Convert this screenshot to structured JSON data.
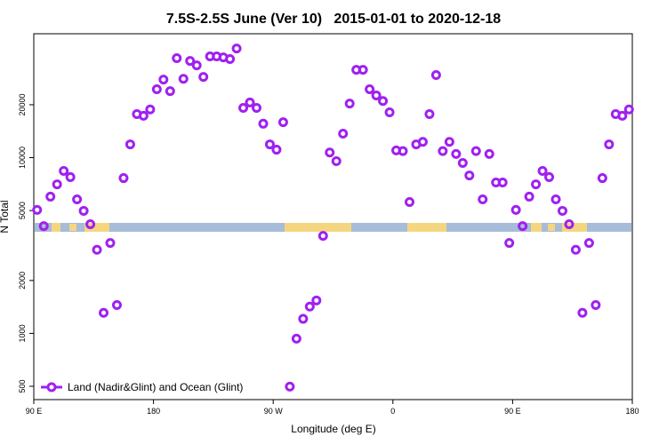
{
  "chart_data": {
    "type": "scatter",
    "title": "7.5S-2.5S June (Ver 10)   2015-01-01 to 2020-12-18",
    "x_label": "Longitude (deg E)",
    "y_label": "N Total",
    "ylog": true,
    "legend": "bottom-left",
    "xlim": [
      90,
      540
    ],
    "xticks": [
      {
        "value": 90,
        "label": "90 E"
      },
      180,
      {
        "value": 270,
        "label": "90 W"
      },
      {
        "value": 360,
        "label": "0"
      },
      {
        "value": 450,
        "label": "90 E"
      },
      {
        "value": 540,
        "label": "180"
      }
    ],
    "ylim": [
      420,
      50700
    ],
    "yticks": [
      500,
      1000,
      2000,
      5000,
      10000,
      20000
    ],
    "x": [
      92.5,
      97.5,
      102.5,
      107.5,
      112.5,
      117.5,
      122.5,
      127.5,
      132.5,
      137.5,
      142.5,
      147.5,
      152.5,
      157.5,
      162.5,
      167.5,
      172.5,
      177.5,
      182.5,
      187.5,
      192.5,
      197.5,
      202.5,
      207.5,
      212.5,
      217.5,
      222.5,
      227.5,
      232.5,
      237.5,
      242.5,
      247.5,
      252.5,
      257.5,
      262.5,
      267.5,
      272.5,
      277.5,
      282.5,
      287.5,
      292.5,
      297.5,
      302.5,
      307.5,
      312.5,
      317.5,
      322.5,
      327.5,
      332.5,
      337.5,
      342.5,
      347.5,
      352.5,
      357.5,
      362.5,
      367.5,
      372.5,
      377.5,
      382.5,
      387.5,
      392.5,
      397.5,
      402.5,
      407.5,
      412.5,
      417.5,
      422.5,
      427.5,
      432.5,
      437.5,
      442.5,
      447.5,
      452.5,
      457.5,
      462.5,
      467.5,
      472.5,
      477.5,
      482.5,
      487.5,
      492.5,
      497.5,
      502.5,
      507.5,
      512.5,
      517.5,
      522.5,
      527.5,
      532.5,
      537.5
    ],
    "series": [
      {
        "name": "Land (Nadir&Glint) and Ocean (Glint)",
        "color": "#a020f0",
        "values": [
          5040,
          4080,
          6000,
          7050,
          8400,
          7750,
          5790,
          4980,
          4180,
          2990,
          1310,
          3270,
          1450,
          7650,
          11900,
          17700,
          17300,
          18800,
          24500,
          27800,
          23900,
          36800,
          28100,
          35500,
          33500,
          28800,
          37700,
          37700,
          37200,
          36400,
          41800,
          19200,
          20600,
          19200,
          15600,
          11900,
          11100,
          15900,
          498,
          933,
          1210,
          1420,
          1540,
          3590,
          10700,
          9550,
          13700,
          20300,
          31600,
          31600,
          24500,
          22600,
          21000,
          18100,
          11000,
          10900,
          5590,
          11900,
          12300,
          17700,
          29500,
          10900,
          12300,
          10500,
          9330,
          7920,
          10900,
          5790,
          10500,
          7220,
          7220,
          3270,
          5040,
          4080,
          6000,
          7050,
          8400,
          7750,
          5790,
          4980,
          4180,
          2990,
          1310,
          3270,
          1450,
          7650,
          11900,
          17700,
          17300,
          18800
        ]
      }
    ]
  }
}
